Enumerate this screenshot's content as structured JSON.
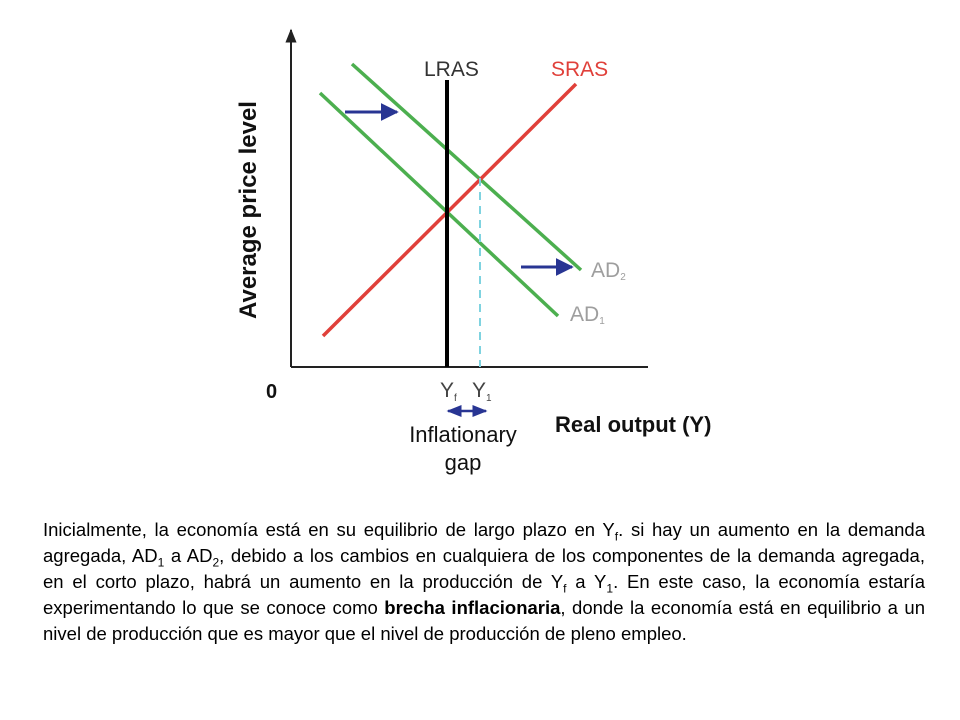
{
  "diagram": {
    "y_axis_label": "Average price level",
    "x_axis_label": "Real output (Y)",
    "origin_label": "0",
    "curves": {
      "lras": "LRAS",
      "sras": "SRAS",
      "ad1": "AD1",
      "ad2": "AD2"
    },
    "x_labels": {
      "yf": "Yf",
      "y1": "Y1"
    },
    "gap_label_line1": "Inflationary",
    "gap_label_line2": "gap",
    "colors": {
      "sras": "#e0403a",
      "ad": "#4caf4f",
      "lras": "#000000",
      "arrow": "#283593",
      "dashed": "#7fd3e0",
      "label_gray": "#9e9e9e"
    }
  },
  "caption": {
    "p1": "Inicialmente, la economía está en su equilibrio de largo plazo en Y",
    "p1_sub": "f",
    "p2": ". si hay un aumento en la demanda agregada, AD",
    "p2_sub": "1",
    "p3": " a AD",
    "p3_sub": "2",
    "p4": ", debido a los cambios en cualquiera de los componentes de la demanda agregada, en el corto plazo, habrá un aumento en la producción de Y",
    "p4_sub": "f",
    "p5": " a Y",
    "p5_sub": "1",
    "p6": ". En este caso, la economía estaría experimentando lo que se conoce como ",
    "bold": "brecha inflacionaria",
    "p7": ", donde la economía está en equilibrio a un nivel de producción que es mayor que el nivel de producción de pleno empleo."
  }
}
